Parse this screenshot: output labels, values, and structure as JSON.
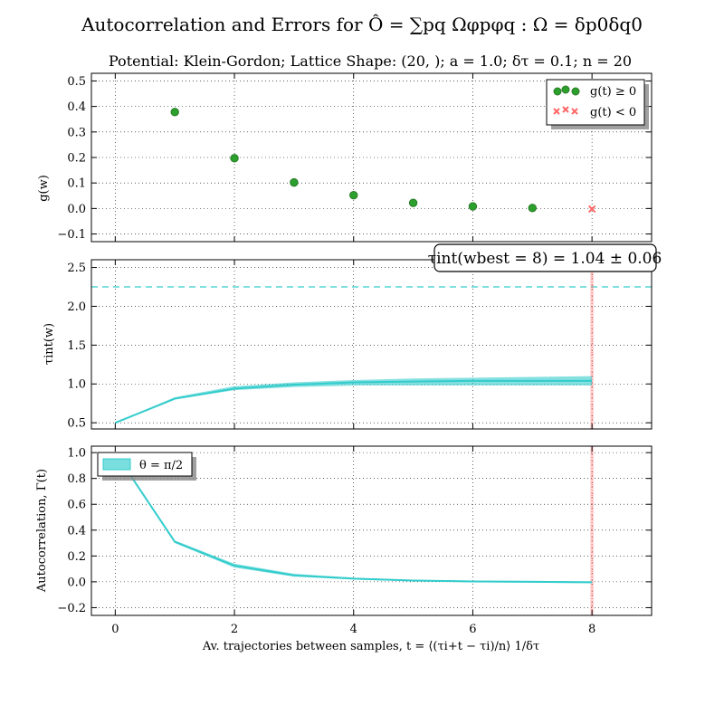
{
  "chart_data": [
    {
      "type": "scatter",
      "suptitle": "Autocorrelation and Errors for Ô = ∑pq Ωφpφq : Ω = δp0δq0",
      "title": "Potential: Klein-Gordon; Lattice Shape: (20, ); a = 1.0; δτ = 0.1; n = 20",
      "ylabel": "g(w)",
      "xlim": [
        -0.4,
        9
      ],
      "ylim": [
        -0.13,
        0.53
      ],
      "yticks": [
        "−0.1",
        "0.0",
        "0.1",
        "0.2",
        "0.3",
        "0.4",
        "0.5"
      ],
      "grid": true,
      "legend_position": "top-right",
      "series": [
        {
          "name": "g(t) ≥ 0",
          "color": "#2ca02c",
          "marker": "circle",
          "x": [
            1,
            2,
            3,
            4,
            5,
            6,
            7
          ],
          "y": [
            0.378,
            0.197,
            0.102,
            0.052,
            0.022,
            0.008,
            0.002
          ]
        },
        {
          "name": "g(t) < 0",
          "color": "#ff6666",
          "marker": "x",
          "x": [
            8
          ],
          "y": [
            -0.002
          ]
        }
      ]
    },
    {
      "type": "area",
      "ylabel": "τint(w)",
      "xlim": [
        -0.4,
        9
      ],
      "ylim": [
        0.42,
        2.6
      ],
      "yticks": [
        "0.5",
        "1.0",
        "1.5",
        "2.0",
        "2.5"
      ],
      "grid": true,
      "annotation": "τint(wbest = 8) = 1.04 ± 0.06",
      "hline": {
        "y": 2.25,
        "color": "#33cccc",
        "style": "dashed"
      },
      "vline": {
        "x": 8,
        "color": "#ff6666",
        "style": "dotted"
      },
      "series": [
        {
          "color": "#33cccc",
          "x": [
            0,
            1,
            2,
            3,
            4,
            5,
            6,
            7,
            8
          ],
          "y": [
            0.5,
            0.81,
            0.94,
            0.99,
            1.02,
            1.03,
            1.04,
            1.04,
            1.04
          ],
          "lower": [
            0.5,
            0.8,
            0.92,
            0.96,
            0.98,
            0.98,
            0.98,
            0.98,
            0.98
          ],
          "upper": [
            0.5,
            0.83,
            0.97,
            1.02,
            1.05,
            1.07,
            1.08,
            1.09,
            1.1
          ]
        }
      ]
    },
    {
      "type": "area",
      "ylabel": "Autocorrelation, Γ(t)",
      "xlabel": "Av. trajectories between samples, t = ⟨(τi+t − τi)/n⟩ 1/δτ",
      "xlim": [
        -0.4,
        9
      ],
      "ylim": [
        -0.26,
        1.05
      ],
      "yticks": [
        "−0.2",
        "0.0",
        "0.2",
        "0.4",
        "0.6",
        "0.8",
        "1.0"
      ],
      "xticks": [
        "0",
        "2",
        "4",
        "6",
        "8"
      ],
      "grid": true,
      "legend_position": "top-left",
      "vline": {
        "x": 8,
        "color": "#ff6666",
        "style": "dotted"
      },
      "series": [
        {
          "name": "θ = π/2",
          "color": "#33cccc",
          "x": [
            0,
            1,
            2,
            3,
            4,
            5,
            6,
            7,
            8
          ],
          "y": [
            1.0,
            0.31,
            0.125,
            0.05,
            0.025,
            0.01,
            0.003,
            0.0,
            -0.003
          ],
          "lower": [
            1.0,
            0.3,
            0.11,
            0.04,
            0.018,
            0.004,
            -0.003,
            -0.007,
            -0.01
          ],
          "upper": [
            1.0,
            0.32,
            0.14,
            0.062,
            0.032,
            0.016,
            0.009,
            0.007,
            0.004
          ]
        }
      ]
    }
  ]
}
